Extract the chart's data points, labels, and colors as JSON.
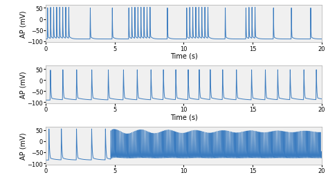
{
  "line_color": "#3a7bbf",
  "line_width": 0.7,
  "ylim": [
    -105,
    65
  ],
  "xlim": [
    0,
    20
  ],
  "yticks": [
    -100,
    -50,
    0,
    50
  ],
  "xticks": [
    0,
    5,
    10,
    15,
    20
  ],
  "ylabel": "AP (mV)",
  "xlabel": "Time (s)",
  "bg_color": "#f0f0f0",
  "fig_bg": "#ffffff",
  "label_fontsize": 7,
  "tick_fontsize": 6,
  "panel1": {
    "burst_groups": [
      {
        "start": 0.1,
        "n": 8,
        "interval": 0.22
      },
      {
        "start": 3.2,
        "n": 1,
        "interval": 0.5
      },
      {
        "start": 4.8,
        "n": 1,
        "interval": 0.5
      },
      {
        "start": 6.0,
        "n": 8,
        "interval": 0.22
      },
      {
        "start": 8.8,
        "n": 1,
        "interval": 0.5
      },
      {
        "start": 10.2,
        "n": 8,
        "interval": 0.22
      },
      {
        "start": 13.0,
        "n": 1,
        "interval": 0.5
      },
      {
        "start": 14.5,
        "n": 4,
        "interval": 0.22
      },
      {
        "start": 16.5,
        "n": 1,
        "interval": 0.5
      },
      {
        "start": 17.8,
        "n": 1,
        "interval": 0.5
      },
      {
        "start": 19.2,
        "n": 1,
        "interval": 0.5
      }
    ],
    "resting": -90,
    "peak": 50,
    "rise_time": 0.02,
    "fall1_time": 0.05,
    "fall2_time": 0.15
  },
  "panel2": {
    "spike_times": [
      0.3,
      1.2,
      2.2,
      3.3,
      4.5,
      5.6,
      6.6,
      7.6,
      8.5,
      9.4,
      10.3,
      11.1,
      11.9,
      12.8,
      13.8,
      14.9,
      15.9,
      16.8,
      17.7,
      18.7,
      19.6
    ],
    "resting": -90,
    "peak": 45,
    "rise_time": 0.03,
    "fall1_time": 0.1,
    "fall2_time": 0.5
  },
  "panel3": {
    "big_spikes": [
      0.2,
      1.1,
      2.2,
      3.3,
      4.3
    ],
    "rapid_start": 4.7,
    "rapid_end": 20.0,
    "rapid_interval": 0.095,
    "big_peak": 55,
    "small_peak_base": 35,
    "small_peak_var": 10,
    "resting": -85,
    "rise_time": 0.02,
    "fall1_time": 0.04,
    "fall2_time": 0.12,
    "big_fall2": 0.35
  }
}
